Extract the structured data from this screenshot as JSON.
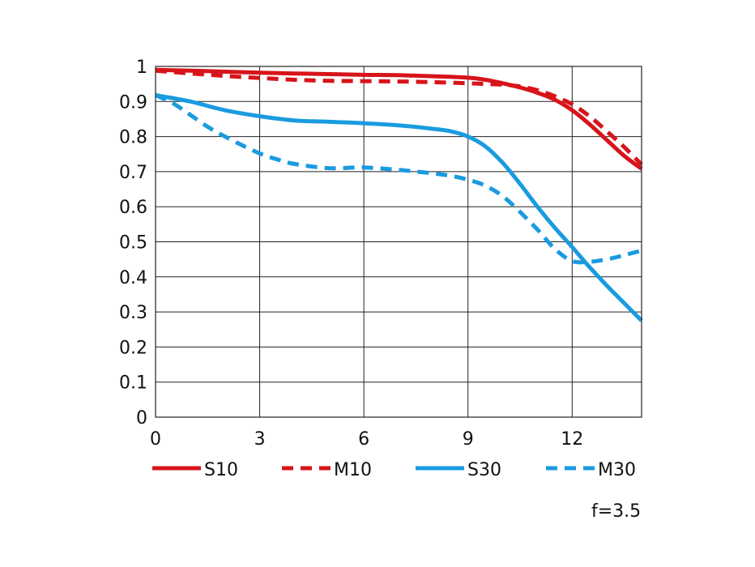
{
  "chart_data": {
    "type": "line",
    "xlim": [
      0,
      14
    ],
    "ylim": [
      0,
      1
    ],
    "xticks": [
      0,
      3,
      6,
      9,
      12
    ],
    "yticks": [
      0,
      0.1,
      0.2,
      0.3,
      0.4,
      0.5,
      0.6,
      0.7,
      0.8,
      0.9,
      1
    ],
    "ytick_labels": [
      "0",
      "0.1",
      "0.2",
      "0.3",
      "0.4",
      "0.5",
      "0.6",
      "0.7",
      "0.8",
      "0.9",
      "1"
    ],
    "xtick_labels": [
      "0",
      "3",
      "6",
      "9",
      "12"
    ],
    "grid": true,
    "legend_position": "bottom",
    "annotation": "f=3.5",
    "series": [
      {
        "name": "S10",
        "color": "#d7141a",
        "dash": "solid",
        "x": [
          0,
          1,
          2,
          3,
          4,
          5,
          6,
          7,
          8,
          9,
          9.5,
          10,
          10.5,
          11,
          11.5,
          12,
          12.5,
          13,
          13.5,
          14
        ],
        "y": [
          0.99,
          0.988,
          0.985,
          0.982,
          0.98,
          0.978,
          0.976,
          0.975,
          0.972,
          0.968,
          0.962,
          0.952,
          0.94,
          0.925,
          0.905,
          0.875,
          0.835,
          0.79,
          0.745,
          0.708
        ]
      },
      {
        "name": "M10",
        "color": "#d7141a",
        "dash": "dashed",
        "x": [
          0,
          1,
          2,
          3,
          4,
          5,
          6,
          7,
          8,
          9,
          9.5,
          10,
          10.5,
          11,
          11.5,
          12,
          12.5,
          13,
          13.5,
          14
        ],
        "y": [
          0.988,
          0.98,
          0.973,
          0.967,
          0.962,
          0.959,
          0.958,
          0.957,
          0.955,
          0.952,
          0.95,
          0.948,
          0.943,
          0.932,
          0.915,
          0.892,
          0.858,
          0.815,
          0.77,
          0.72
        ]
      },
      {
        "name": "S30",
        "color": "#1a9be0",
        "dash": "solid",
        "x": [
          0,
          1,
          2,
          3,
          4,
          5,
          6,
          7,
          8,
          8.5,
          9,
          9.5,
          10,
          10.5,
          11,
          11.5,
          12,
          12.5,
          13,
          13.5,
          14
        ],
        "y": [
          0.918,
          0.9,
          0.875,
          0.858,
          0.846,
          0.842,
          0.838,
          0.832,
          0.822,
          0.815,
          0.8,
          0.772,
          0.725,
          0.665,
          0.6,
          0.54,
          0.485,
          0.428,
          0.375,
          0.325,
          0.275
        ]
      },
      {
        "name": "M30",
        "color": "#1a9be0",
        "dash": "dashed",
        "x": [
          0,
          0.5,
          1,
          1.5,
          2,
          2.5,
          3,
          3.5,
          4,
          5,
          6,
          7,
          8,
          8.5,
          9,
          9.5,
          10,
          10.5,
          11,
          11.5,
          12,
          12.5,
          13,
          13.5,
          14
        ],
        "y": [
          0.918,
          0.895,
          0.862,
          0.828,
          0.8,
          0.775,
          0.752,
          0.735,
          0.722,
          0.71,
          0.712,
          0.705,
          0.695,
          0.688,
          0.677,
          0.66,
          0.63,
          0.585,
          0.535,
          0.48,
          0.445,
          0.443,
          0.45,
          0.462,
          0.475
        ]
      }
    ]
  }
}
